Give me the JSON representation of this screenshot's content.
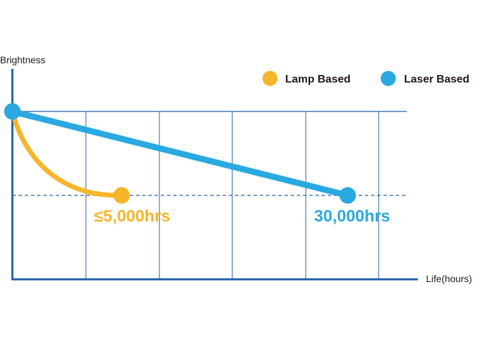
{
  "chart_data": {
    "type": "line",
    "title": "",
    "xlabel": "Life(hours)",
    "ylabel": "Brightness",
    "legend_position": "top-right",
    "grid": true,
    "series": [
      {
        "name": "Lamp Based",
        "color": "#F7B52C",
        "end_label": "≤5,000hrs",
        "end_life_hours": 5000,
        "start_brightness": 1.0,
        "end_brightness": 0.5,
        "shape": "steep-curve"
      },
      {
        "name": "Laser Based",
        "color": "#2AA9E0",
        "end_label": "30,000hrs",
        "end_life_hours": 30000,
        "start_brightness": 1.0,
        "end_brightness": 0.5,
        "shape": "linear"
      }
    ],
    "colors": {
      "axis": "#1D5FA8",
      "grid": "#1D5FA8"
    }
  }
}
